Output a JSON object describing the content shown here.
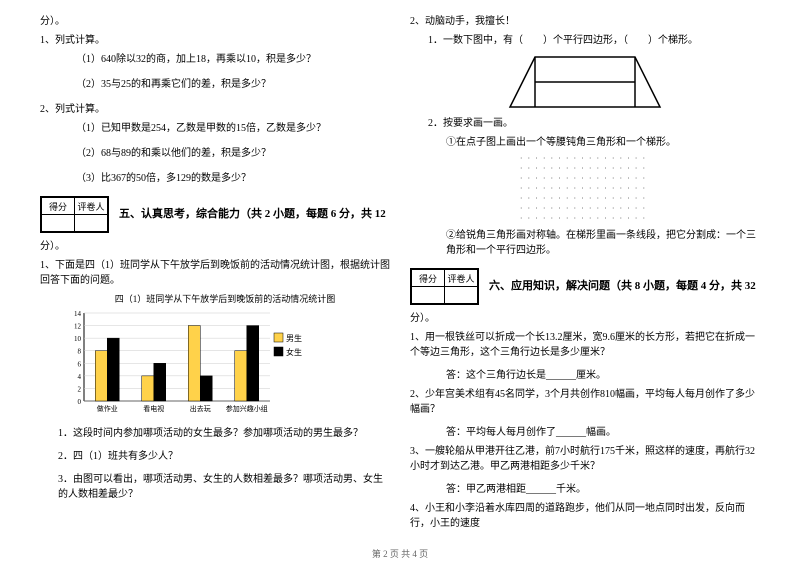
{
  "left": {
    "fen": "分）。",
    "q1": "1、列式计算。",
    "q1a": "（1）640除以32的商，加上18，再乘以10，积是多少？",
    "q1b": "（2）35与25的和再乘它们的差，积是多少？",
    "q2": "2、列式计算。",
    "q2a": "（1）已知甲数是254，乙数是甲数的15倍，乙数是多少？",
    "q2b": "（2）68与89的和乘以他们的差，积是多少？",
    "q2c": "（3）比367的50倍，多129的数是多少？",
    "score": {
      "c1": "得分",
      "c2": "评卷人"
    },
    "section5": "五、认真思考，综合能力（共 2 小题，每题 6 分，共 12",
    "fen2": "分）。",
    "q3": "1、下面是四（1）班同学从下午放学后到晚饭前的活动情况统计图，根据统计图回答下面的问题。",
    "chart": {
      "title": "四（1）班同学从下午放学后到晚饭前的活动情况统计图",
      "yticks": [
        0,
        2,
        4,
        6,
        8,
        10,
        12,
        14
      ],
      "categories": [
        "做作业",
        "看电视",
        "出去玩",
        "参加兴趣小组"
      ],
      "series": [
        {
          "name": "男生",
          "color": "#ffd24a",
          "values": [
            8,
            4,
            12,
            8
          ]
        },
        {
          "name": "女生",
          "color": "#000000",
          "values": [
            10,
            6,
            4,
            12
          ]
        }
      ],
      "legend_boy": "男生",
      "legend_girl": "女生"
    },
    "q3a": "1．这段时间内参加哪项活动的女生最多？参加哪项活动的男生最多？",
    "q3b": "2．四（1）班共有多少人？",
    "q3c": "3．由图可以看出，哪项活动男、女生的人数相差最多？哪项活动男、女生的人数相差最少？"
  },
  "right": {
    "q1": "2、动脑动手，我擅长！",
    "q1a": "1．一数下图中，有（　　）个平行四边形，（　　）个梯形。",
    "q2": "2．按要求画一画。",
    "q2a": "①在点子图上画出一个等腰钝角三角形和一个梯形。",
    "q2b": "②给锐角三角形画对称轴。在梯形里画一条线段，把它分割成：一个三角形和一个平行四边形。",
    "score": {
      "c1": "得分",
      "c2": "评卷人"
    },
    "section6": "六、应用知识，解决问题（共 8 小题，每题 4 分，共 32",
    "fen": "分）。",
    "p1": "1、用一根铁丝可以折成一个长13.2厘米，宽9.6厘米的长方形，若把它在折成一个等边三角形，这个三角行边长是多少厘米？",
    "p1a": "答：这个三角行边长是______厘米。",
    "p2": "2、少年宫美术组有45名同学，3个月共创作810幅画，平均每人每月创作了多少幅画？",
    "p2a": "答：平均每人每月创作了______幅画。",
    "p3": "3、一艘轮船从甲港开往乙港，前7小时航行175千米，照这样的速度，再航行32小时才到达乙港。甲乙两港相距多少千米？",
    "p3a": "答：甲乙两港相距______千米。",
    "p4": "4、小王和小李沿着水库四周的道路跑步，他们从同一地点同时出发，反向而行，小王的速度"
  },
  "footer": "第 2 页 共 4 页"
}
